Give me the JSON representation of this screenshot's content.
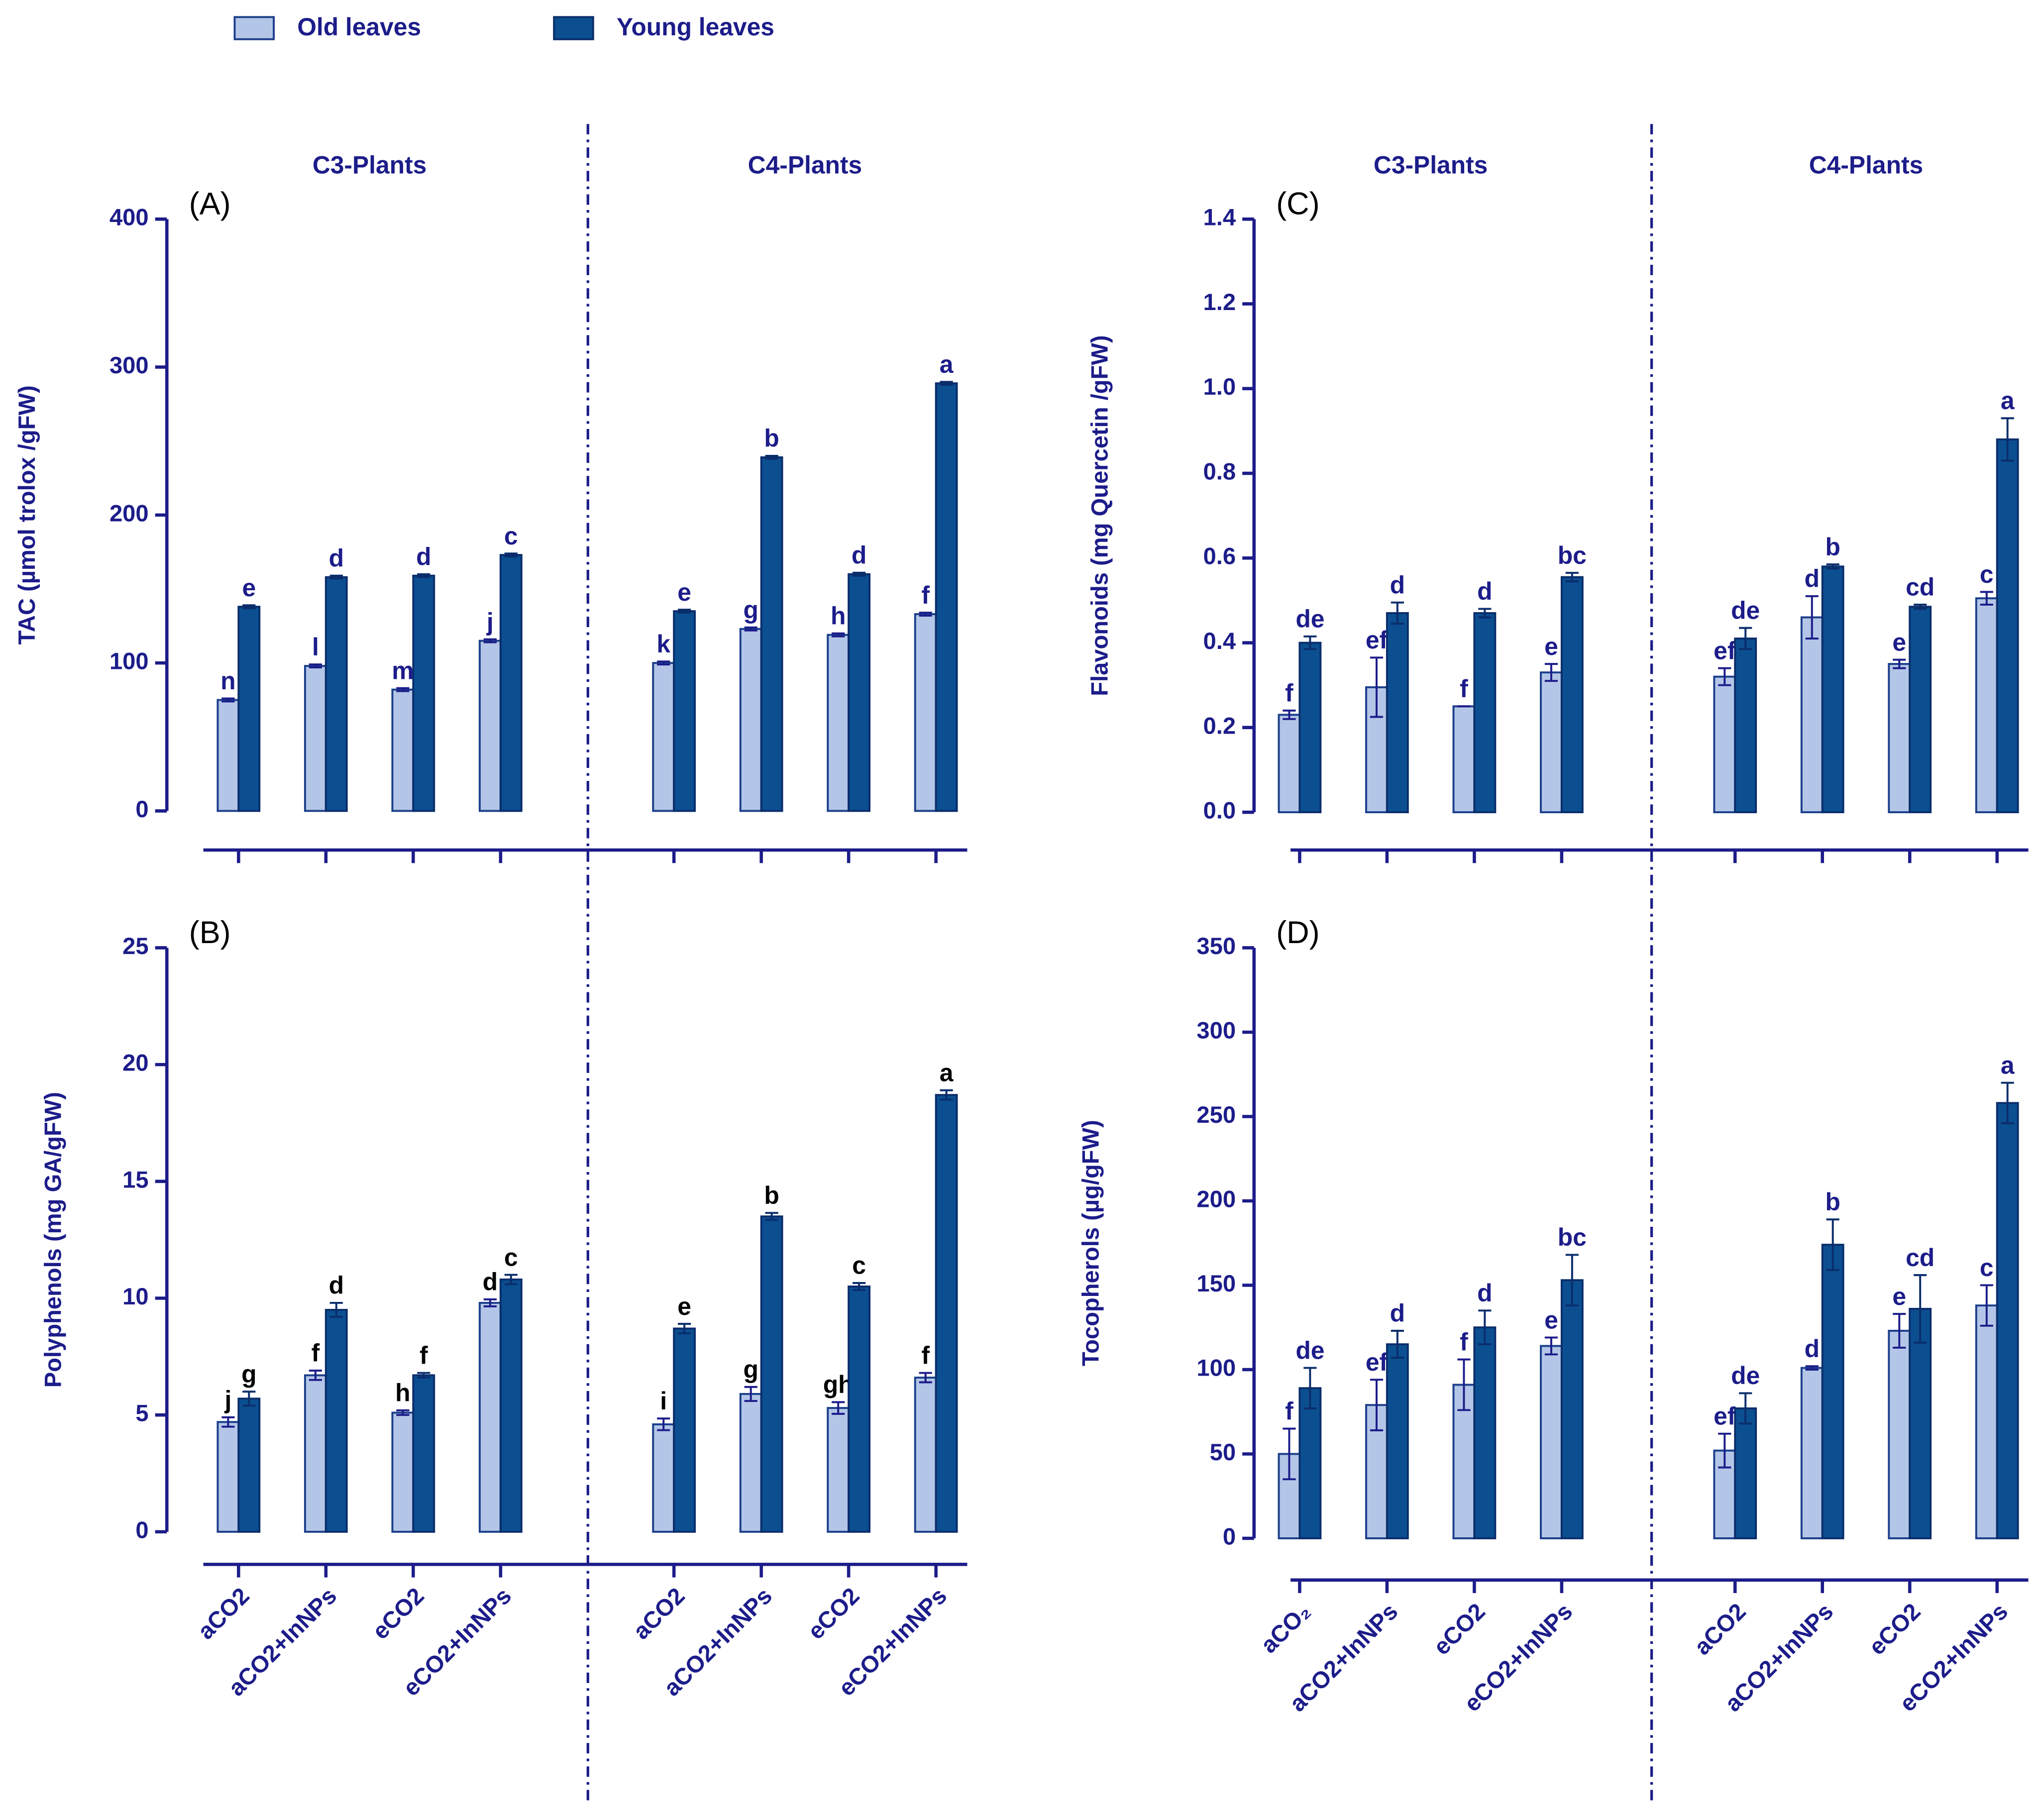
{
  "legend": {
    "series": [
      {
        "name": "Old leaves",
        "color": "#b4c6e7",
        "edge": "#1b3f8b"
      },
      {
        "name": "Young leaves",
        "color": "#0b4f91",
        "edge": "#0a2d6b"
      }
    ]
  },
  "chart_data": [
    {
      "type": "bar",
      "tag": "(A)",
      "ylabel": "TAC (µmol trolox /gFW)",
      "groups": [
        "C3-Plants",
        "C4-Plants"
      ],
      "ylim": [
        0,
        400
      ],
      "yticks": [
        0,
        100,
        200,
        300,
        400
      ],
      "letter_color": "#1c1c8a",
      "series": [
        {
          "values": [
            75,
            98,
            82,
            115,
            100,
            123,
            119,
            133
          ],
          "errors": [
            1,
            1,
            1,
            1,
            1,
            1,
            1,
            1
          ],
          "letters": [
            "n",
            "l",
            "m",
            "j",
            "k",
            "g",
            "h",
            "f"
          ]
        },
        {
          "values": [
            138,
            158,
            159,
            173,
            135,
            239,
            160,
            289
          ],
          "errors": [
            1,
            1,
            1,
            1,
            1,
            1,
            1,
            1
          ],
          "letters": [
            "e",
            "d",
            "d",
            "c",
            "e",
            "b",
            "d",
            "a"
          ]
        }
      ]
    },
    {
      "type": "bar",
      "tag": "(B)",
      "ylabel": "Polyphenols (mg GA/gFW)",
      "categories": [
        "aCO2",
        "aCO2+InNPs",
        "eCO2",
        "eCO2+InNPs",
        "aCO2",
        "aCO2+InNPs",
        "eCO2",
        "eCO2+InNPs"
      ],
      "ylim": [
        0,
        25
      ],
      "yticks": [
        0,
        5,
        10,
        15,
        20,
        25
      ],
      "letter_color": "#000000",
      "series": [
        {
          "values": [
            4.7,
            6.7,
            5.1,
            9.8,
            4.6,
            5.9,
            5.3,
            6.6
          ],
          "errors": [
            0.2,
            0.2,
            0.1,
            0.15,
            0.25,
            0.3,
            0.25,
            0.2
          ],
          "letters": [
            "j",
            "f",
            "h",
            "d",
            "i",
            "g",
            "gh",
            "f"
          ]
        },
        {
          "values": [
            5.7,
            9.5,
            6.7,
            10.8,
            8.7,
            13.5,
            10.5,
            18.7
          ],
          "errors": [
            0.3,
            0.3,
            0.1,
            0.2,
            0.2,
            0.15,
            0.15,
            0.2
          ],
          "letters": [
            "g",
            "d",
            "f",
            "c",
            "e",
            "b",
            "c",
            "a"
          ]
        }
      ]
    },
    {
      "type": "bar",
      "tag": "(C)",
      "ylabel": "Flavonoids (mg Quercetin /gFW)",
      "groups": [
        "C3-Plants",
        "C4-Plants"
      ],
      "ylim": [
        0,
        1.4
      ],
      "yticks": [
        {
          "value": 0,
          "label": "0.0"
        },
        0.2,
        0.4,
        0.6,
        0.8,
        {
          "value": 1,
          "label": "1.0"
        },
        1.2,
        1.4
      ],
      "letter_color": "#1c1c8a",
      "series": [
        {
          "values": [
            0.23,
            0.295,
            0.25,
            0.33,
            0.32,
            0.46,
            0.35,
            0.505
          ],
          "errors": [
            0.01,
            0.07,
            0,
            0.02,
            0.02,
            0.05,
            0.01,
            0.015
          ],
          "letters": [
            "f",
            "ef",
            "f",
            "e",
            "ef",
            "d",
            "e",
            "c"
          ]
        },
        {
          "values": [
            0.4,
            0.47,
            0.47,
            0.555,
            0.41,
            0.58,
            0.485,
            0.88
          ],
          "errors": [
            0.015,
            0.025,
            0.01,
            0.01,
            0.025,
            0.005,
            0.005,
            0.05
          ],
          "letters": [
            "de",
            "d",
            "d",
            "bc",
            "de",
            "b",
            "cd",
            "a"
          ]
        }
      ]
    },
    {
      "type": "bar",
      "tag": "(D)",
      "ylabel": "Tocopherols (µg/gFW)",
      "categories": [
        "aCO₂",
        "aCO2+InNPs",
        "eCO2",
        "eCO2+InNPs",
        "aCO2",
        "aCO2+InNPs",
        "eCO2",
        "eCO2+InNPs"
      ],
      "ylim": [
        0,
        350
      ],
      "yticks": [
        0,
        50,
        100,
        150,
        200,
        250,
        300,
        350
      ],
      "letter_color": "#1c1c8a",
      "series": [
        {
          "values": [
            50,
            79,
            91,
            114,
            52,
            101,
            123,
            138
          ],
          "errors": [
            15,
            15,
            15,
            5,
            10,
            1,
            10,
            12
          ],
          "letters": [
            "f",
            "ef",
            "f",
            "e",
            "ef",
            "d",
            "e",
            "c"
          ]
        },
        {
          "values": [
            89,
            115,
            125,
            153,
            77,
            174,
            136,
            258
          ],
          "errors": [
            12,
            8,
            10,
            15,
            9,
            15,
            20,
            12
          ],
          "letters": [
            "de",
            "d",
            "d",
            "bc",
            "de",
            "b",
            "cd",
            "a"
          ]
        }
      ]
    }
  ]
}
